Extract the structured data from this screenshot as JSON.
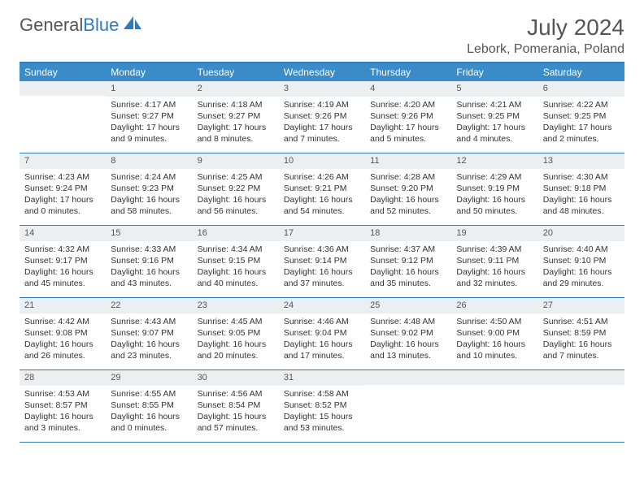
{
  "logo": {
    "text1": "General",
    "text2": "Blue"
  },
  "title": "July 2024",
  "location": "Lebork, Pomerania, Poland",
  "colors": {
    "header_bg": "#3b8bc9",
    "border": "#2e7cc0",
    "daynum_bg": "#eceff1",
    "text": "#333333",
    "muted": "#555555"
  },
  "day_names": [
    "Sunday",
    "Monday",
    "Tuesday",
    "Wednesday",
    "Thursday",
    "Friday",
    "Saturday"
  ],
  "weeks": [
    [
      {
        "n": "",
        "sr": "",
        "ss": "",
        "dl": ""
      },
      {
        "n": "1",
        "sr": "Sunrise: 4:17 AM",
        "ss": "Sunset: 9:27 PM",
        "dl": "Daylight: 17 hours and 9 minutes."
      },
      {
        "n": "2",
        "sr": "Sunrise: 4:18 AM",
        "ss": "Sunset: 9:27 PM",
        "dl": "Daylight: 17 hours and 8 minutes."
      },
      {
        "n": "3",
        "sr": "Sunrise: 4:19 AM",
        "ss": "Sunset: 9:26 PM",
        "dl": "Daylight: 17 hours and 7 minutes."
      },
      {
        "n": "4",
        "sr": "Sunrise: 4:20 AM",
        "ss": "Sunset: 9:26 PM",
        "dl": "Daylight: 17 hours and 5 minutes."
      },
      {
        "n": "5",
        "sr": "Sunrise: 4:21 AM",
        "ss": "Sunset: 9:25 PM",
        "dl": "Daylight: 17 hours and 4 minutes."
      },
      {
        "n": "6",
        "sr": "Sunrise: 4:22 AM",
        "ss": "Sunset: 9:25 PM",
        "dl": "Daylight: 17 hours and 2 minutes."
      }
    ],
    [
      {
        "n": "7",
        "sr": "Sunrise: 4:23 AM",
        "ss": "Sunset: 9:24 PM",
        "dl": "Daylight: 17 hours and 0 minutes."
      },
      {
        "n": "8",
        "sr": "Sunrise: 4:24 AM",
        "ss": "Sunset: 9:23 PM",
        "dl": "Daylight: 16 hours and 58 minutes."
      },
      {
        "n": "9",
        "sr": "Sunrise: 4:25 AM",
        "ss": "Sunset: 9:22 PM",
        "dl": "Daylight: 16 hours and 56 minutes."
      },
      {
        "n": "10",
        "sr": "Sunrise: 4:26 AM",
        "ss": "Sunset: 9:21 PM",
        "dl": "Daylight: 16 hours and 54 minutes."
      },
      {
        "n": "11",
        "sr": "Sunrise: 4:28 AM",
        "ss": "Sunset: 9:20 PM",
        "dl": "Daylight: 16 hours and 52 minutes."
      },
      {
        "n": "12",
        "sr": "Sunrise: 4:29 AM",
        "ss": "Sunset: 9:19 PM",
        "dl": "Daylight: 16 hours and 50 minutes."
      },
      {
        "n": "13",
        "sr": "Sunrise: 4:30 AM",
        "ss": "Sunset: 9:18 PM",
        "dl": "Daylight: 16 hours and 48 minutes."
      }
    ],
    [
      {
        "n": "14",
        "sr": "Sunrise: 4:32 AM",
        "ss": "Sunset: 9:17 PM",
        "dl": "Daylight: 16 hours and 45 minutes."
      },
      {
        "n": "15",
        "sr": "Sunrise: 4:33 AM",
        "ss": "Sunset: 9:16 PM",
        "dl": "Daylight: 16 hours and 43 minutes."
      },
      {
        "n": "16",
        "sr": "Sunrise: 4:34 AM",
        "ss": "Sunset: 9:15 PM",
        "dl": "Daylight: 16 hours and 40 minutes."
      },
      {
        "n": "17",
        "sr": "Sunrise: 4:36 AM",
        "ss": "Sunset: 9:14 PM",
        "dl": "Daylight: 16 hours and 37 minutes."
      },
      {
        "n": "18",
        "sr": "Sunrise: 4:37 AM",
        "ss": "Sunset: 9:12 PM",
        "dl": "Daylight: 16 hours and 35 minutes."
      },
      {
        "n": "19",
        "sr": "Sunrise: 4:39 AM",
        "ss": "Sunset: 9:11 PM",
        "dl": "Daylight: 16 hours and 32 minutes."
      },
      {
        "n": "20",
        "sr": "Sunrise: 4:40 AM",
        "ss": "Sunset: 9:10 PM",
        "dl": "Daylight: 16 hours and 29 minutes."
      }
    ],
    [
      {
        "n": "21",
        "sr": "Sunrise: 4:42 AM",
        "ss": "Sunset: 9:08 PM",
        "dl": "Daylight: 16 hours and 26 minutes."
      },
      {
        "n": "22",
        "sr": "Sunrise: 4:43 AM",
        "ss": "Sunset: 9:07 PM",
        "dl": "Daylight: 16 hours and 23 minutes."
      },
      {
        "n": "23",
        "sr": "Sunrise: 4:45 AM",
        "ss": "Sunset: 9:05 PM",
        "dl": "Daylight: 16 hours and 20 minutes."
      },
      {
        "n": "24",
        "sr": "Sunrise: 4:46 AM",
        "ss": "Sunset: 9:04 PM",
        "dl": "Daylight: 16 hours and 17 minutes."
      },
      {
        "n": "25",
        "sr": "Sunrise: 4:48 AM",
        "ss": "Sunset: 9:02 PM",
        "dl": "Daylight: 16 hours and 13 minutes."
      },
      {
        "n": "26",
        "sr": "Sunrise: 4:50 AM",
        "ss": "Sunset: 9:00 PM",
        "dl": "Daylight: 16 hours and 10 minutes."
      },
      {
        "n": "27",
        "sr": "Sunrise: 4:51 AM",
        "ss": "Sunset: 8:59 PM",
        "dl": "Daylight: 16 hours and 7 minutes."
      }
    ],
    [
      {
        "n": "28",
        "sr": "Sunrise: 4:53 AM",
        "ss": "Sunset: 8:57 PM",
        "dl": "Daylight: 16 hours and 3 minutes."
      },
      {
        "n": "29",
        "sr": "Sunrise: 4:55 AM",
        "ss": "Sunset: 8:55 PM",
        "dl": "Daylight: 16 hours and 0 minutes."
      },
      {
        "n": "30",
        "sr": "Sunrise: 4:56 AM",
        "ss": "Sunset: 8:54 PM",
        "dl": "Daylight: 15 hours and 57 minutes."
      },
      {
        "n": "31",
        "sr": "Sunrise: 4:58 AM",
        "ss": "Sunset: 8:52 PM",
        "dl": "Daylight: 15 hours and 53 minutes."
      },
      {
        "n": "",
        "sr": "",
        "ss": "",
        "dl": ""
      },
      {
        "n": "",
        "sr": "",
        "ss": "",
        "dl": ""
      },
      {
        "n": "",
        "sr": "",
        "ss": "",
        "dl": ""
      }
    ]
  ]
}
